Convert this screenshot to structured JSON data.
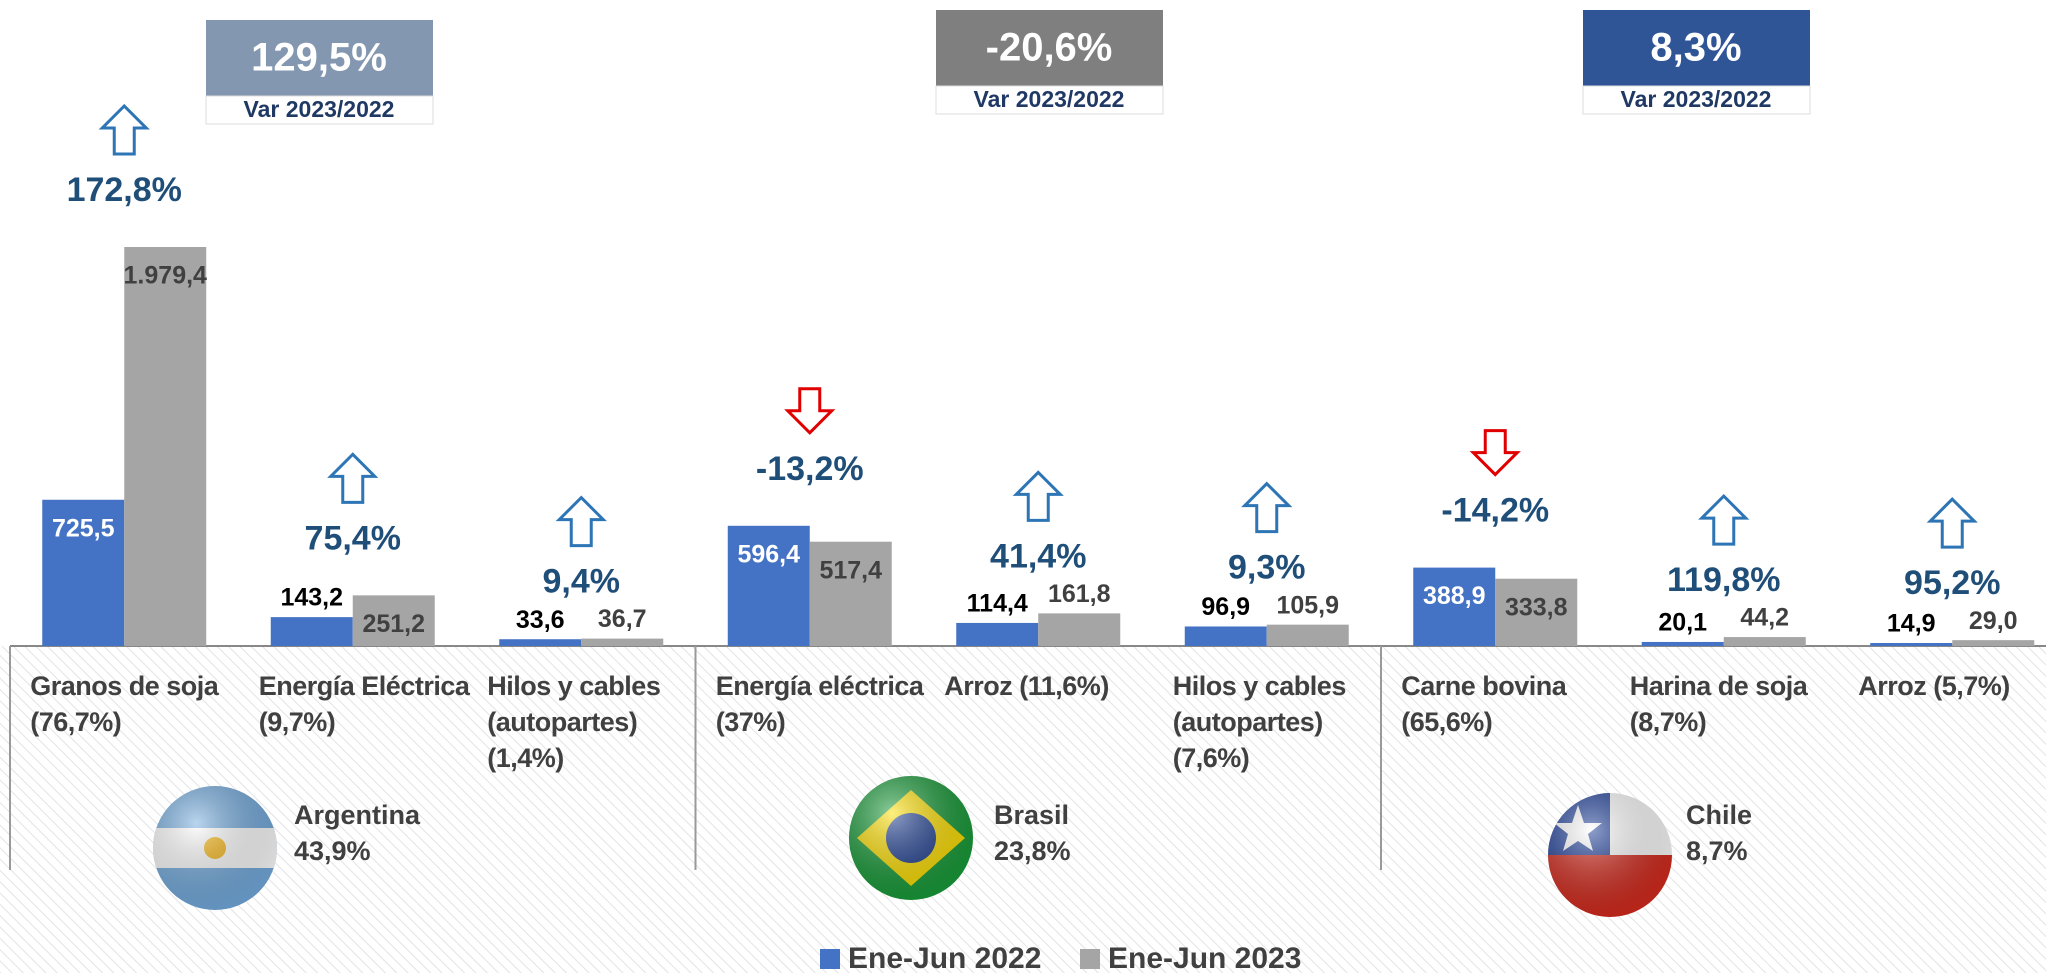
{
  "chart_data": {
    "type": "bar",
    "categories": [
      "Granos de soja\n(76,7%)",
      "Energía Eléctrica\n(9,7%)",
      "Hilos y cables\n(autopartes)\n(1,4%)",
      "Energía eléctrica\n(37%)",
      "Arroz (11,6%)",
      "Hilos y cables\n(autopartes)\n(7,6%)",
      "Carne bovina\n(65,6%)",
      "Harina de soja\n(8,7%)",
      "Arroz (5,7%)"
    ],
    "series": [
      {
        "name": "Ene-Jun 2022",
        "color": "#4472c4",
        "values": [
          725.5,
          143.2,
          33.6,
          596.4,
          114.4,
          96.9,
          388.9,
          20.1,
          14.9
        ],
        "value_labels": [
          "725,5",
          "143,2",
          "33,6",
          "596,4",
          "114,4",
          "96,9",
          "388,9",
          "20,1",
          "14,9"
        ]
      },
      {
        "name": "Ene-Jun 2023",
        "color": "#a5a5a5",
        "values": [
          1979.4,
          251.2,
          36.7,
          517.4,
          161.8,
          105.9,
          333.8,
          44.2,
          29.0
        ],
        "value_labels": [
          "1.979,4",
          "251,2",
          "36,7",
          "517,4",
          "161,8",
          "105,9",
          "333,8",
          "44,2",
          "29,0"
        ]
      }
    ],
    "changes": {
      "values": [
        172.8,
        75.4,
        9.4,
        -13.2,
        41.4,
        9.3,
        -14.2,
        119.8,
        95.2
      ],
      "value_labels": [
        "172,8%",
        "75,4%",
        "9,4%",
        "-13,2%",
        "41,4%",
        "9,3%",
        "-14,2%",
        "119,8%",
        "95,2%"
      ]
    },
    "groups": [
      {
        "name": "Argentina",
        "share": 43.9,
        "share_label": "43,9%",
        "variation": 129.5,
        "variation_label": "129,5%",
        "variation_caption": "Var 2023/2022",
        "color": "#8497b0"
      },
      {
        "name": "Brasil",
        "share": 23.8,
        "share_label": "23,8%",
        "variation": -20.6,
        "variation_label": "-20,6%",
        "variation_caption": "Var 2023/2022",
        "color": "#7f7f7f"
      },
      {
        "name": "Chile",
        "share": 8.7,
        "share_label": "8,7%",
        "variation": 8.3,
        "variation_label": "8,3%",
        "variation_caption": "Var 2023/2022",
        "color": "#2f5597"
      }
    ]
  }
}
